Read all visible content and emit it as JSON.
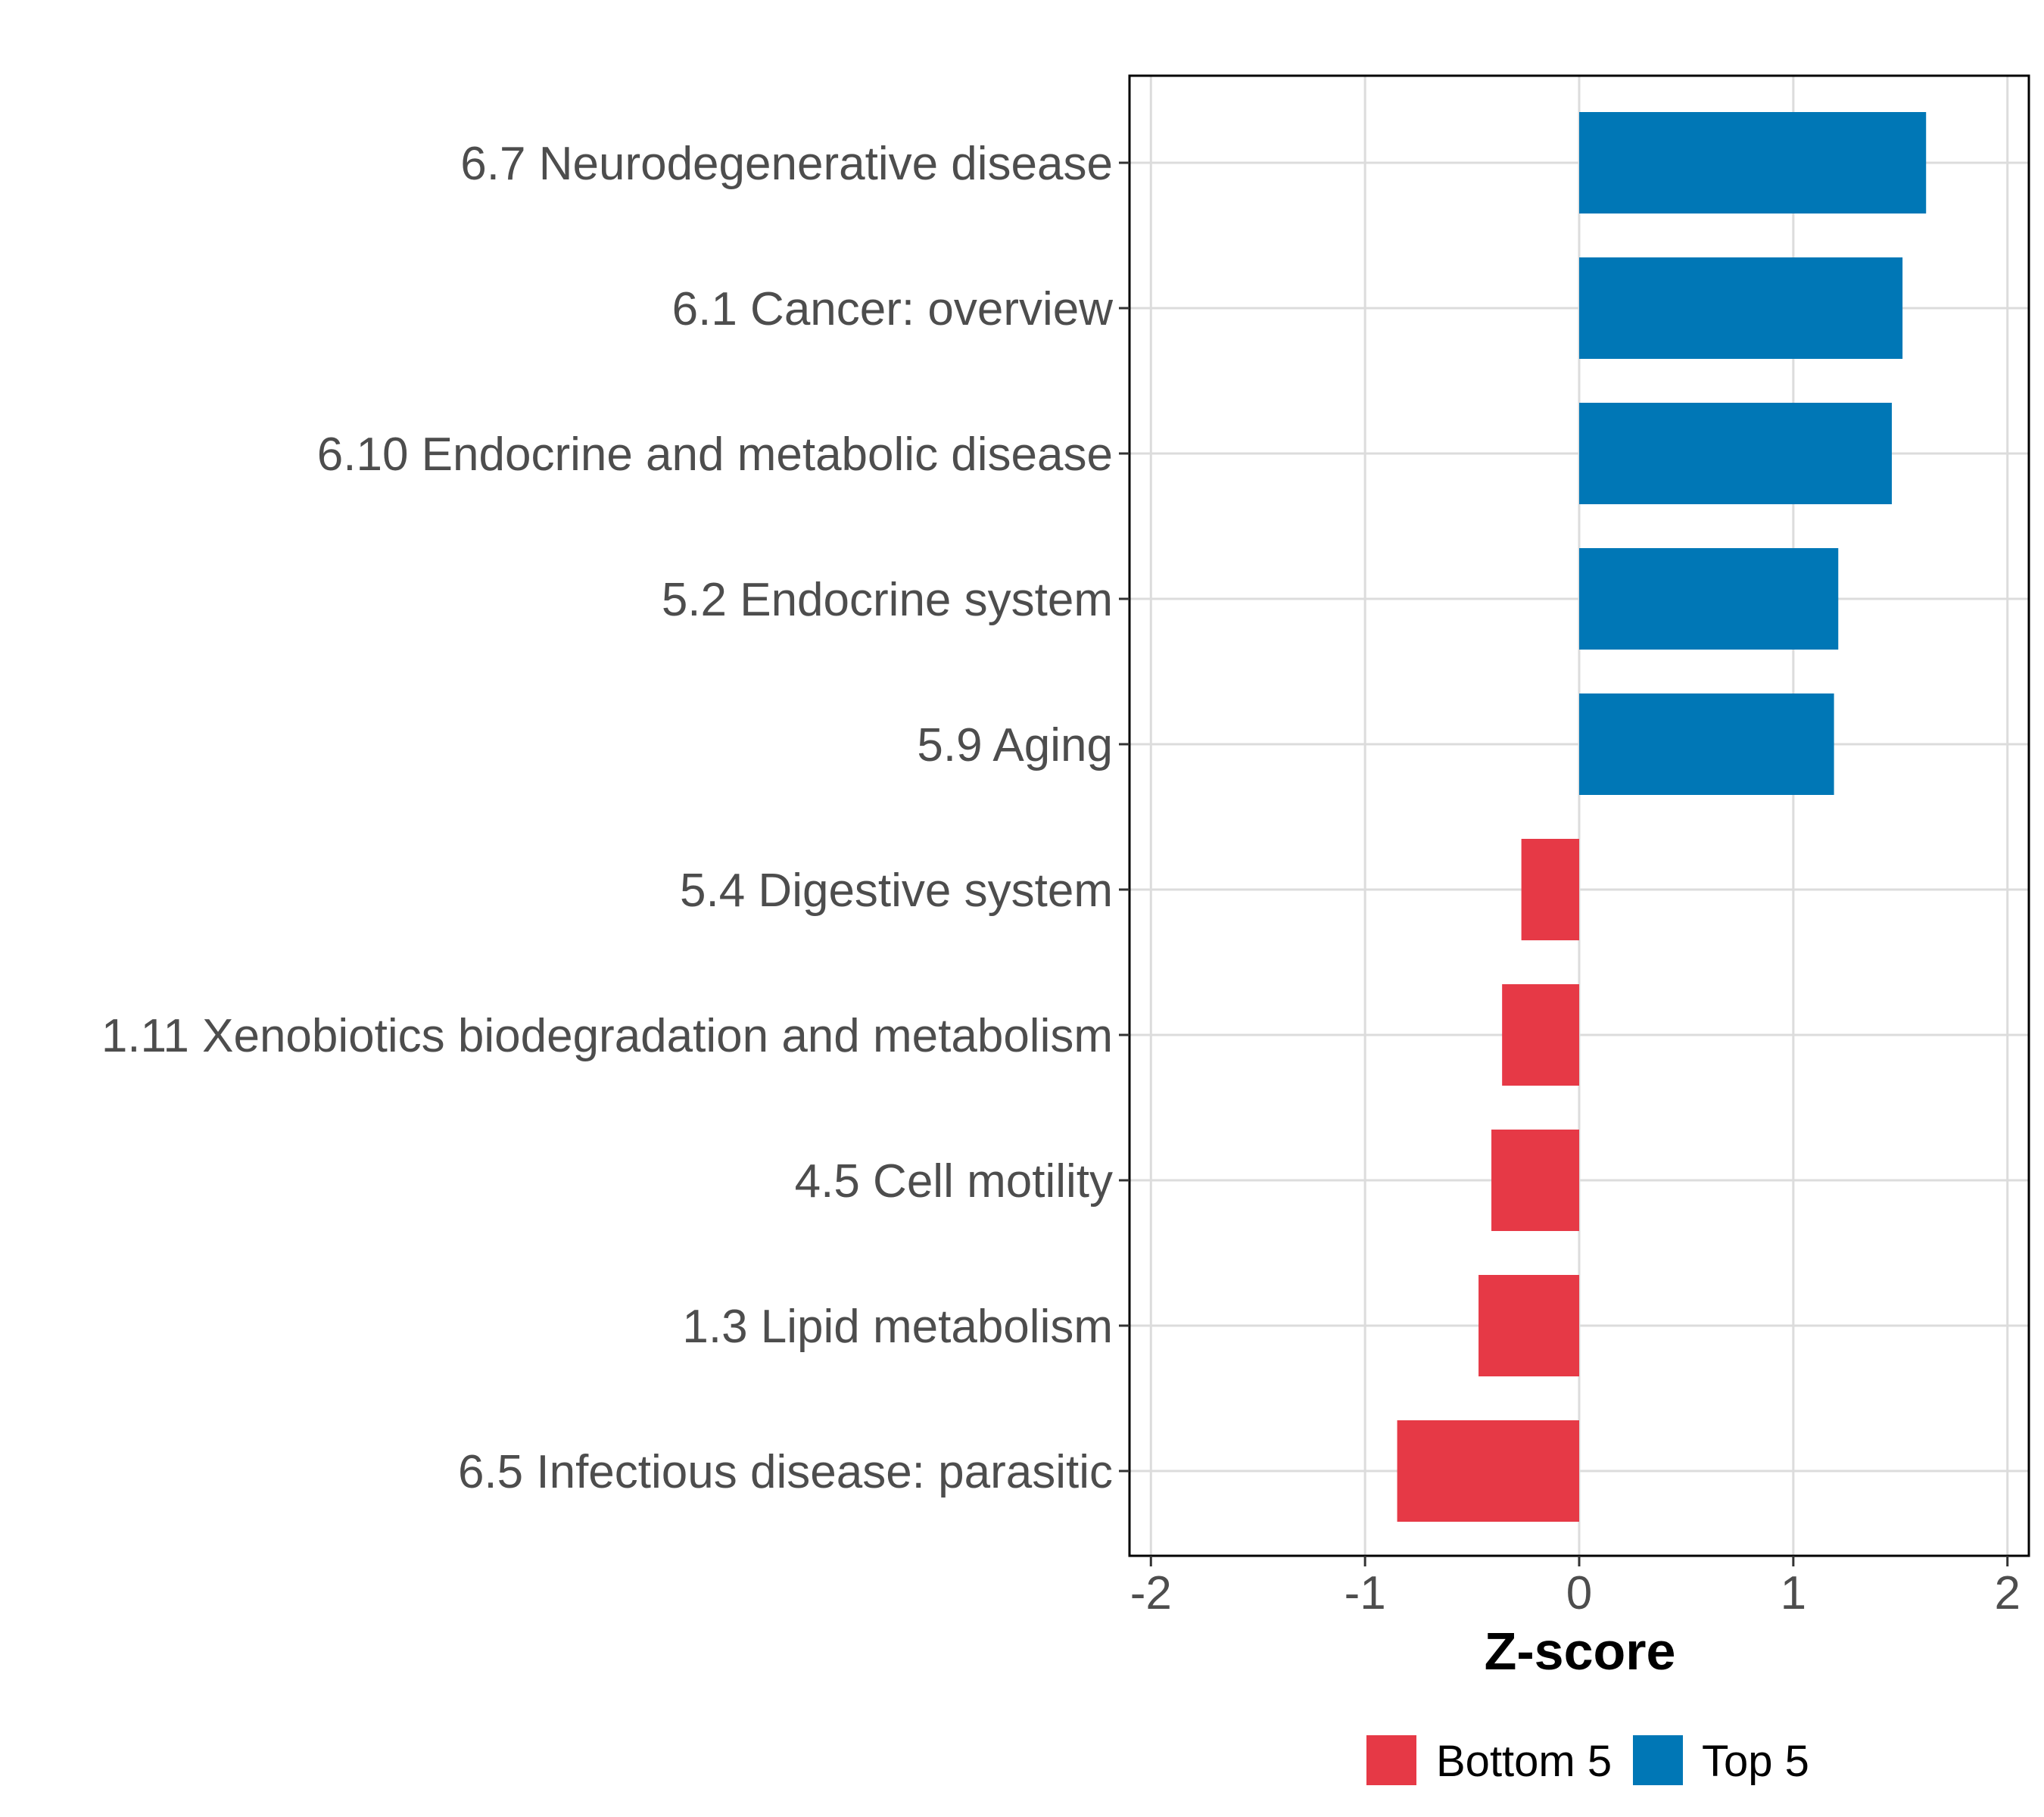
{
  "chart_data": {
    "type": "bar",
    "orientation": "horizontal",
    "title": "",
    "xlabel": "Z-score",
    "ylabel": "",
    "xlim": [
      -2.1,
      2.1
    ],
    "xticks": [
      -2,
      -1,
      0,
      1,
      2
    ],
    "xtick_labels": [
      "-2",
      "-1",
      "0",
      "1",
      "2"
    ],
    "grid": true,
    "legend_position": "bottom",
    "categories": [
      "6.7 Neurodegenerative disease",
      "6.1 Cancer: overview",
      "6.10 Endocrine and metabolic disease",
      "5.2 Endocrine system",
      "5.9 Aging",
      "5.4 Digestive system",
      "1.11 Xenobiotics biodegradation and metabolism",
      "4.5 Cell motility",
      "1.3 Lipid metabolism",
      "6.5 Infectious disease: parasitic"
    ],
    "values": [
      1.62,
      1.51,
      1.46,
      1.21,
      1.19,
      -0.27,
      -0.36,
      -0.41,
      -0.47,
      -0.85
    ],
    "groups": [
      "Top 5",
      "Top 5",
      "Top 5",
      "Top 5",
      "Top 5",
      "Bottom 5",
      "Bottom 5",
      "Bottom 5",
      "Bottom 5",
      "Bottom 5"
    ],
    "legend": [
      {
        "label": "Bottom 5",
        "color": "#e63946"
      },
      {
        "label": "Top 5",
        "color": "#0077b6"
      }
    ]
  },
  "colors": {
    "grid": "#dcdcdc",
    "axis_text": "#4d4d4d",
    "panel_border": "#000000"
  }
}
